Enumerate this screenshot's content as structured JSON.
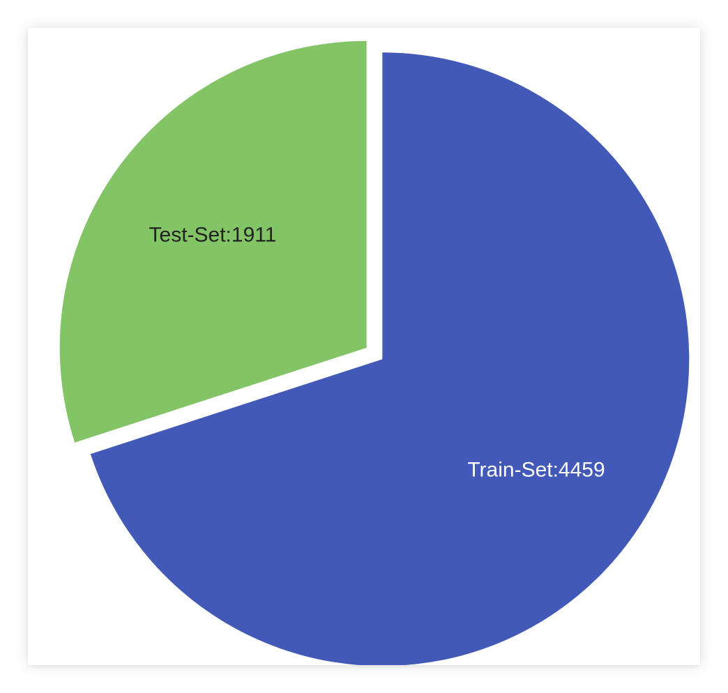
{
  "chart_data": {
    "type": "pie",
    "title": "",
    "slices": [
      {
        "name": "Train-Set",
        "value": 4459,
        "label": "Train-Set:4459",
        "color": "#4359b8",
        "label_color": "#ffffff"
      },
      {
        "name": "Test-Set",
        "value": 1911,
        "label": "Test-Set:1911",
        "color": "#83c466",
        "label_color": "#222222"
      }
    ],
    "legend": "none",
    "start_angle_deg": 0,
    "exploded": true
  }
}
